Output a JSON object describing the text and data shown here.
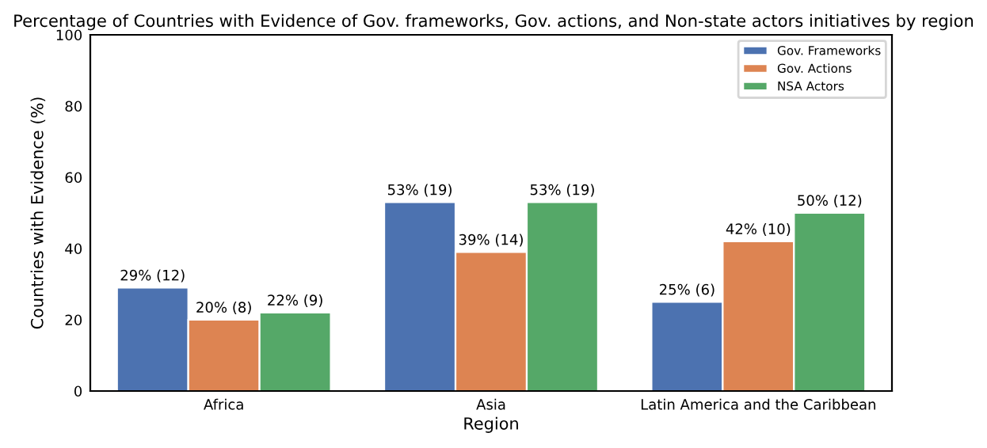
{
  "chart_data": {
    "type": "bar",
    "title": "Percentage of Countries with Evidence of Gov. frameworks, Gov. actions, and Non-state actors initiatives by region",
    "xlabel": "Region",
    "ylabel": "Countries with Evidence (%)",
    "categories": [
      "Africa",
      "Asia",
      "Latin America and the Caribbean"
    ],
    "series": [
      {
        "name": "Gov. Frameworks",
        "color": "#4c72b0",
        "values": [
          29,
          53,
          25
        ],
        "value_labels": [
          "29% (12)",
          "53% (19)",
          "25% (6)"
        ]
      },
      {
        "name": "Gov. Actions",
        "color": "#dd8452",
        "values": [
          20,
          39,
          42
        ],
        "value_labels": [
          "20% (8)",
          "39% (14)",
          "42% (10)"
        ]
      },
      {
        "name": "NSA Actors",
        "color": "#55a868",
        "values": [
          22,
          53,
          50
        ],
        "value_labels": [
          "22% (9)",
          "53% (19)",
          "50% (12)"
        ]
      }
    ],
    "ylim": [
      0,
      100
    ],
    "yticks": [
      0,
      20,
      40,
      60,
      80,
      100
    ],
    "grid": false,
    "legend": "top right"
  }
}
